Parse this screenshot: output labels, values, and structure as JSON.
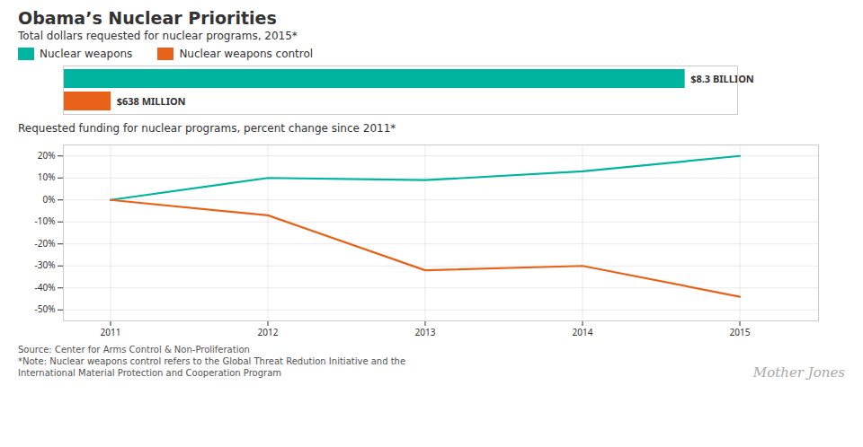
{
  "chart_data": [
    {
      "type": "bar",
      "orientation": "horizontal",
      "title": "Obama’s Nuclear Priorities",
      "subtitle": "Total dollars requested for nuclear programs, 2015*",
      "categories": [
        "Nuclear weapons",
        "Nuclear weapons control"
      ],
      "values": [
        8300000000,
        638000000
      ],
      "value_labels": [
        "$8.3 BILLION",
        "$638 MILLION"
      ],
      "colors": [
        "#00b5a0",
        "#e8621a"
      ],
      "xlim": [
        0,
        9000000000
      ],
      "data_labels": true,
      "tick_labels": false,
      "legend": "top"
    },
    {
      "type": "line",
      "title": "Requested funding for nuclear programs, percent change since 2011*",
      "x": [
        2011,
        2012,
        2013,
        2014,
        2015
      ],
      "series": [
        {
          "name": "Nuclear weapons",
          "color": "#00b5a0",
          "values": [
            0,
            10,
            9,
            13,
            20
          ]
        },
        {
          "name": "Nuclear weapons control",
          "color": "#e8621a",
          "values": [
            0,
            -7,
            -32,
            -30,
            -44
          ]
        }
      ],
      "xlim": [
        2010.7,
        2015.5
      ],
      "xticks": [
        2011,
        2012,
        2013,
        2014,
        2015
      ],
      "ylim": [
        -55,
        25
      ],
      "yticks": [
        {
          "value": -50,
          "label": "-50%"
        },
        {
          "value": -40,
          "label": "-40%"
        },
        {
          "value": -30,
          "label": "-30%"
        },
        {
          "value": -20,
          "label": "-20%"
        },
        {
          "value": -10,
          "label": "-10%"
        },
        {
          "value": 0,
          "label": "0%"
        },
        {
          "value": 10,
          "label": "10%"
        },
        {
          "value": 20,
          "label": "20%"
        }
      ],
      "grid": true,
      "annotations": [
        "Source: Center for Arms Control & Non-Proliferation",
        "*Note: Nuclear weapons control refers to the Global Threat Redution Initiative and the\nInternational Material Protection and Cooperation Program",
        "Mother Jones"
      ]
    }
  ]
}
